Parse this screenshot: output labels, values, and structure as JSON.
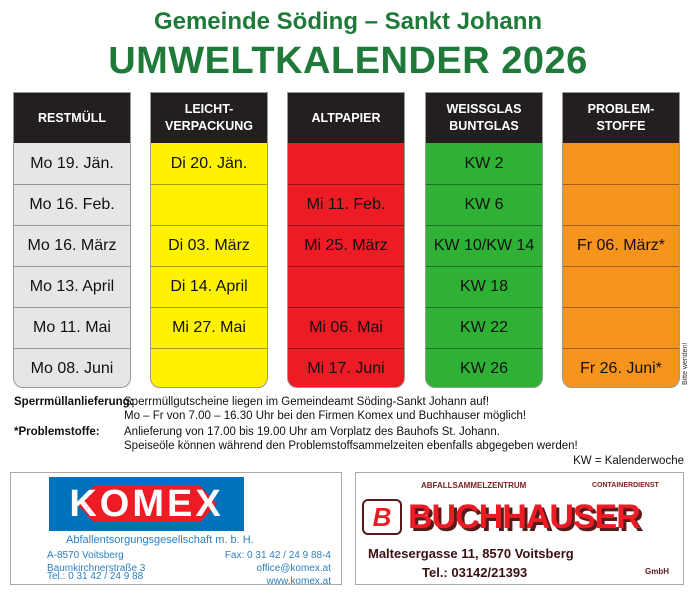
{
  "header": {
    "subtitle": "Gemeinde Söding – Sankt Johann",
    "title": "UMWELTKALENDER 2026"
  },
  "columns": [
    {
      "label": "RESTMÜLL",
      "color": "#e6e6e6",
      "dates": [
        "Mo 19. Jän.",
        "Mo 16. Feb.",
        "Mo 16. März",
        "Mo 13. April",
        "Mo 11. Mai",
        "Mo 08. Juni"
      ]
    },
    {
      "label": "LEICHT-\nVERPACKUNG",
      "color": "#fff200",
      "dates": [
        "Di 20. Jän.",
        "",
        "Di 03. März",
        "Di 14. April",
        "Mi 27. Mai",
        ""
      ]
    },
    {
      "label": "ALTPAPIER",
      "color": "#ed1c24",
      "dates": [
        "",
        "Mi 11. Feb.",
        "Mi 25. März",
        "",
        "Mi 06. Mai",
        "Mi 17. Juni"
      ]
    },
    {
      "label": "WEISSGLAS\nBUNTGLAS",
      "color": "#2eb135",
      "dates": [
        "KW 2",
        "KW 6",
        "KW 10/KW 14",
        "KW 18",
        "KW 22",
        "KW 26"
      ]
    },
    {
      "label": "PROBLEM-\nSTOFFE",
      "color": "#f7941d",
      "dates": [
        "",
        "",
        "Fr 06. März*",
        "",
        "",
        "Fr 26. Juni*"
      ]
    }
  ],
  "side_note": "Bitte wenden!",
  "notes": {
    "sperr_label": "Sperrmüllanlieferung:",
    "sperr_line1": "Sperrmüllgutscheine liegen im Gemeindeamt Söding-Sankt Johann auf!",
    "sperr_line2": "Mo – Fr von 7.00 – 16.30 Uhr bei den Firmen Komex und Buchhauser möglich!",
    "problem_label": "*Problemstoffe:",
    "problem_line1": "Anlieferung von 17.00 bis 19.00 Uhr am Vorplatz des Bauhofs St. Johann.",
    "problem_line2": "Speiseöle können während den Problemstoffsammelzeiten ebenfalls abgegeben werden!",
    "kw": "KW = Kalenderwoche"
  },
  "komex": {
    "logo": "KOMEX",
    "tagline": "Abfallentsorgungsgesellschaft m. b. H.",
    "address1": "A-8570 Voitsberg",
    "address2": "Baumkirchnerstraße 3",
    "tel": "Tel.: 0 31 42 / 24 9 88",
    "fax": "Fax: 0 31 42 / 24 9 88-4",
    "email": "office@komex.at",
    "web": "www.komex.at"
  },
  "buchhauser": {
    "top": "ABFALLSAMMELZENTRUM",
    "logo": "BUCHHAUSER",
    "containerdienst": "CONTAINERDIENST",
    "gmbh": "GmbH",
    "address": "Maltesergasse 11, 8570 Voitsberg",
    "tel": "Tel.: 03142/21393"
  }
}
